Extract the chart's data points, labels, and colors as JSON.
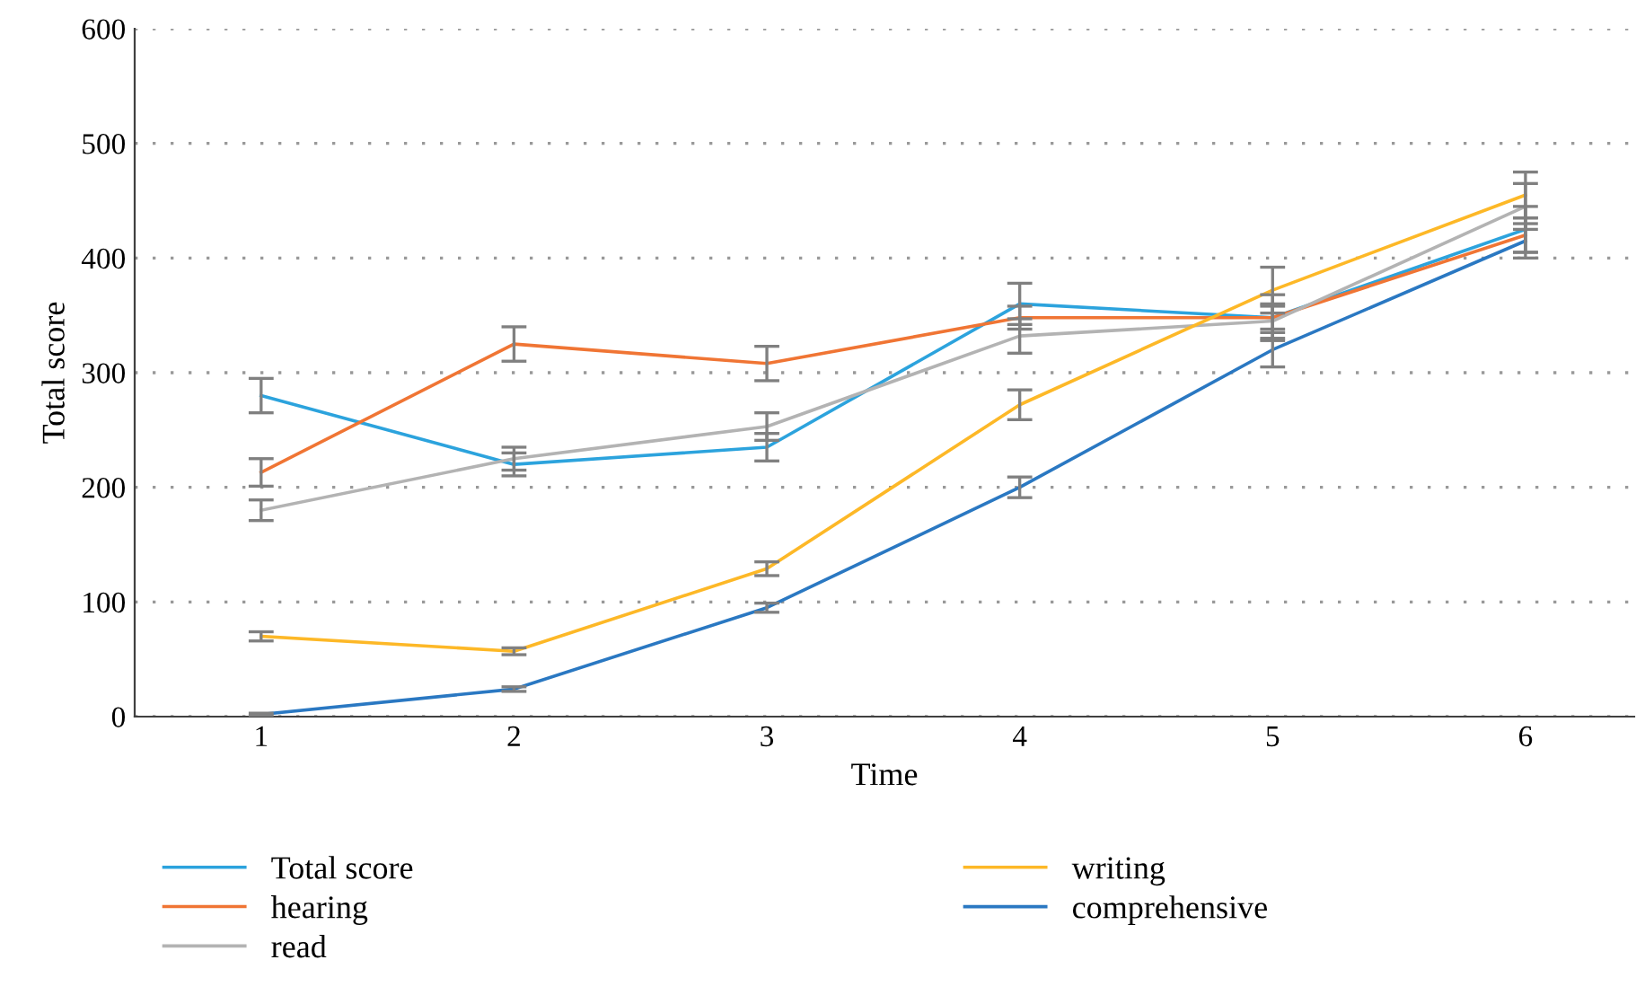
{
  "chart_data": {
    "type": "line",
    "xlabel": "Time",
    "ylabel": "Total score",
    "x": [
      1,
      2,
      3,
      4,
      5,
      6
    ],
    "xlim": [
      0.5,
      6.43
    ],
    "xticks": [
      1,
      2,
      3,
      4,
      5,
      6
    ],
    "ylim": [
      0,
      600
    ],
    "yticks": [
      0,
      100,
      200,
      300,
      400,
      500,
      600
    ],
    "grid": "y",
    "legend": "bottom",
    "marker": "none",
    "line_style": "solid",
    "series": [
      {
        "name": "Total score",
        "color": "#2ca3dd",
        "values": [
          280,
          220,
          235,
          360,
          348,
          425
        ],
        "errors": [
          15,
          10,
          12,
          18,
          20,
          20
        ]
      },
      {
        "name": "hearing",
        "color": "#f07534",
        "values": [
          213,
          325,
          308,
          348,
          348,
          420
        ],
        "errors": [
          12,
          15,
          15,
          10,
          10,
          15
        ]
      },
      {
        "name": "read",
        "color": "#b3b3b3",
        "values": [
          180,
          225,
          253,
          332,
          345,
          445
        ],
        "errors": [
          9,
          10,
          12,
          15,
          15,
          20
        ]
      },
      {
        "name": "writing",
        "color": "#fdb827",
        "values": [
          70,
          57,
          129,
          272,
          372,
          455
        ],
        "errors": [
          4,
          3,
          6,
          13,
          20,
          20
        ]
      },
      {
        "name": "comprehensive",
        "color": "#2a78c2",
        "values": [
          2,
          24,
          95,
          200,
          320,
          415
        ],
        "errors": [
          1,
          2,
          4,
          9,
          15,
          15
        ]
      }
    ]
  }
}
